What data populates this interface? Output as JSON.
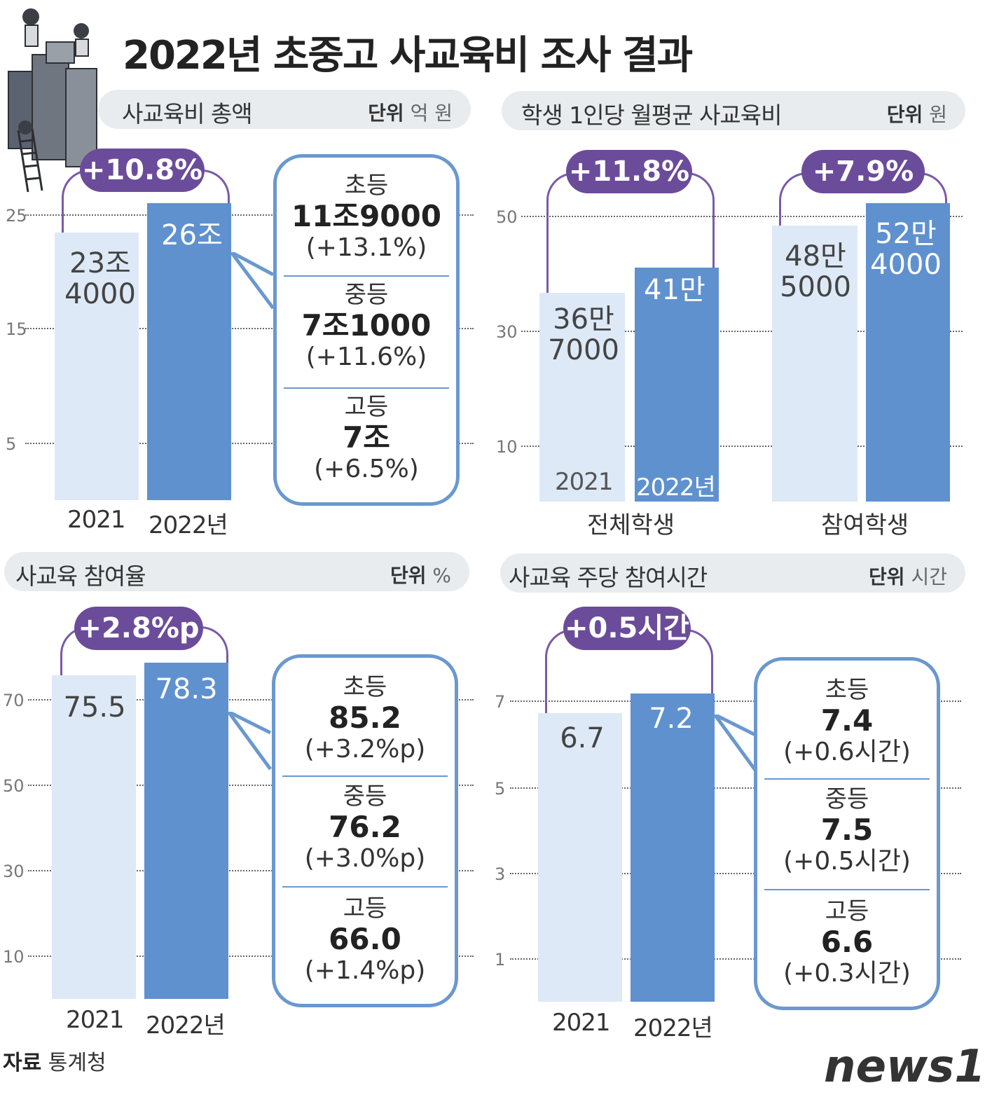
{
  "title": "2022년 초중고 사교육비 조사 결과",
  "source_label": "자료",
  "source_value": "통계청",
  "logo": "news",
  "logo_mark": "1",
  "colors": {
    "light_bar": "#dde9f6",
    "dark_bar": "#5f91cf",
    "pill": "#6b4c9a",
    "callout_border": "#6a98cf"
  },
  "icons": [
    "children-climbing-books-illustration"
  ],
  "chart_data": [
    {
      "type": "bar",
      "title": "사교육비 총액",
      "unit_label": "단위",
      "unit": "억 원",
      "categories": [
        "2021",
        "2022년"
      ],
      "values": [
        23.4,
        26.0
      ],
      "value_labels": [
        [
          "23조",
          "4000"
        ],
        [
          "26조"
        ]
      ],
      "yticks": [
        "25",
        "15",
        "5"
      ],
      "change": "+10.8%",
      "breakdown": [
        {
          "level": "초등",
          "value": "11조9000",
          "change": "(+13.1%)"
        },
        {
          "level": "중등",
          "value": "7조1000",
          "change": "(+11.6%)"
        },
        {
          "level": "고등",
          "value": "7조",
          "change": "(+6.5%)"
        }
      ]
    },
    {
      "type": "bar",
      "title": "학생 1인당 월평균 사교육비",
      "unit_label": "단위",
      "unit": "원",
      "groups": [
        "전체학생",
        "참여학생"
      ],
      "categories": [
        "2021",
        "2022년"
      ],
      "series": [
        {
          "name": "전체학생",
          "values": [
            36.7,
            41.0
          ],
          "value_labels": [
            [
              "36만",
              "7000"
            ],
            [
              "41만"
            ]
          ],
          "change": "+11.8%"
        },
        {
          "name": "참여학생",
          "values": [
            48.5,
            52.4
          ],
          "value_labels": [
            [
              "48만",
              "5000"
            ],
            [
              "52만",
              "4000"
            ]
          ],
          "change": "+7.9%"
        }
      ],
      "yticks": [
        "50",
        "30",
        "10"
      ]
    },
    {
      "type": "bar",
      "title": "사교육 참여율",
      "unit_label": "단위",
      "unit": "%",
      "categories": [
        "2021",
        "2022년"
      ],
      "values": [
        75.5,
        78.3
      ],
      "value_labels": [
        [
          "75.5"
        ],
        [
          "78.3"
        ]
      ],
      "yticks": [
        "70",
        "50",
        "30",
        "10"
      ],
      "change": "+2.8%p",
      "breakdown": [
        {
          "level": "초등",
          "value": "85.2",
          "change": "(+3.2%p)"
        },
        {
          "level": "중등",
          "value": "76.2",
          "change": "(+3.0%p)"
        },
        {
          "level": "고등",
          "value": "66.0",
          "change": "(+1.4%p)"
        }
      ]
    },
    {
      "type": "bar",
      "title": "사교육 주당 참여시간",
      "unit_label": "단위",
      "unit": "시간",
      "categories": [
        "2021",
        "2022년"
      ],
      "values": [
        6.7,
        7.2
      ],
      "value_labels": [
        [
          "6.7"
        ],
        [
          "7.2"
        ]
      ],
      "yticks": [
        "7",
        "5",
        "3",
        "1"
      ],
      "change": "+0.5시간",
      "breakdown": [
        {
          "level": "초등",
          "value": "7.4",
          "change": "(+0.6시간)"
        },
        {
          "level": "중등",
          "value": "7.5",
          "change": "(+0.5시간)"
        },
        {
          "level": "고등",
          "value": "6.6",
          "change": "(+0.3시간)"
        }
      ]
    }
  ]
}
